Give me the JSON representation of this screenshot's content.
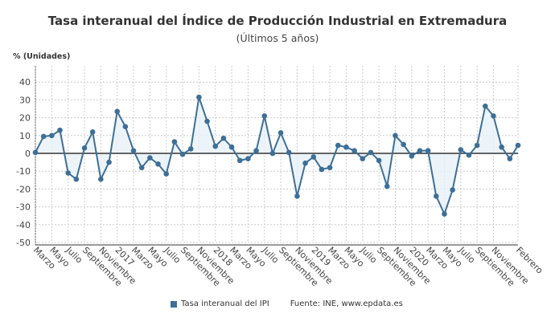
{
  "chart_data": {
    "type": "line",
    "title": "Tasa interanual del Índice de Producción Industrial en Extremadura",
    "subtitle": "(Últimos 5 años)",
    "ylabel": "% (Unidades)",
    "ylim": [
      -50,
      45
    ],
    "yticks": [
      40,
      30,
      20,
      10,
      0,
      -10,
      -20,
      -30,
      -40,
      -50
    ],
    "grid": true,
    "legend_position": "bottom",
    "series": [
      {
        "name": "Tasa interanual del IPI",
        "color": "#3d6f97",
        "values": [
          0.5,
          9.5,
          10,
          13,
          -11,
          -14.5,
          3,
          12,
          -14.5,
          -5,
          23.5,
          15,
          1.5,
          -8,
          -2.5,
          -6,
          -11.5,
          6.5,
          -0.5,
          2.5,
          31.5,
          18,
          4,
          8.5,
          3.5,
          -4,
          -3,
          1.5,
          21,
          0,
          11.5,
          0.5,
          -24,
          -5.5,
          -2,
          -9,
          -8,
          4.5,
          3.5,
          1.5,
          -3,
          0.5,
          -4,
          -18.5,
          10,
          5,
          -1.5,
          1.5,
          1.5,
          -24,
          -34,
          -20.5,
          2,
          -1,
          4.5,
          26.5,
          21,
          3.5,
          -3,
          4.5
        ]
      }
    ],
    "x_tick_labels": [
      {
        "i": 0,
        "label": "Marzo"
      },
      {
        "i": 2,
        "label": "Mayo"
      },
      {
        "i": 4,
        "label": "Julio"
      },
      {
        "i": 6,
        "label": "Septiembre"
      },
      {
        "i": 8,
        "label": "Noviembre"
      },
      {
        "i": 10,
        "label": "2017"
      },
      {
        "i": 12,
        "label": "Marzo"
      },
      {
        "i": 14,
        "label": "Mayo"
      },
      {
        "i": 16,
        "label": "Julio"
      },
      {
        "i": 18,
        "label": "Septiembre"
      },
      {
        "i": 20,
        "label": "Noviembre"
      },
      {
        "i": 22,
        "label": "2018"
      },
      {
        "i": 24,
        "label": "Marzo"
      },
      {
        "i": 26,
        "label": "Mayo"
      },
      {
        "i": 28,
        "label": "Julio"
      },
      {
        "i": 30,
        "label": "Septiembre"
      },
      {
        "i": 32,
        "label": "Noviembre"
      },
      {
        "i": 34,
        "label": "2019"
      },
      {
        "i": 36,
        "label": "Marzo"
      },
      {
        "i": 38,
        "label": "Mayo"
      },
      {
        "i": 40,
        "label": "Julio"
      },
      {
        "i": 42,
        "label": "Septiembre"
      },
      {
        "i": 44,
        "label": "Noviembre"
      },
      {
        "i": 46,
        "label": "2020"
      },
      {
        "i": 48,
        "label": "Marzo"
      },
      {
        "i": 50,
        "label": "Mayo"
      },
      {
        "i": 52,
        "label": "Julio"
      },
      {
        "i": 54,
        "label": "Septiembre"
      },
      {
        "i": 56,
        "label": "Noviembre"
      },
      {
        "i": 59,
        "label": "Febrero"
      }
    ],
    "source": "Fuente: INE, www.epdata.es"
  }
}
